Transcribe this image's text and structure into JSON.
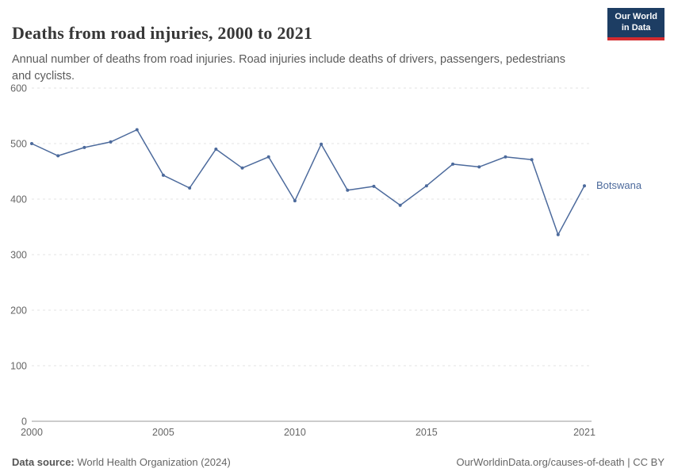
{
  "header": {
    "title": "Deaths from road injuries, 2000 to 2021",
    "subtitle": "Annual number of deaths from road injuries. Road injuries include deaths of drivers, passengers, pedestrians and cyclists.",
    "logo": {
      "line1": "Our World",
      "line2": "in Data"
    }
  },
  "footer": {
    "source_label": "Data source:",
    "source_value": " World Health Organization (2024)",
    "link_text": "OurWorldinData.org/causes-of-death | CC BY"
  },
  "colors": {
    "line": "#4c6a9c",
    "logo_navy": "#1d3d63",
    "logo_red": "#d42b2f",
    "grid": "#e3e3e3",
    "axis": "#9a9a9a",
    "tick_text": "#666666"
  },
  "chart_data": {
    "type": "line",
    "title": "Deaths from road injuries, 2000 to 2021",
    "xlabel": "",
    "ylabel": "",
    "xlim": [
      2000,
      2021
    ],
    "ylim": [
      0,
      600
    ],
    "xticks": [
      2000,
      2005,
      2010,
      2015,
      2021
    ],
    "yticks": [
      0,
      100,
      200,
      300,
      400,
      500,
      600
    ],
    "grid": "horizontal-dashed",
    "legend_position": "entity label right of line end",
    "entity_label": "Botswana",
    "series": [
      {
        "name": "Botswana",
        "color": "#4c6a9c",
        "x": [
          2000,
          2001,
          2002,
          2003,
          2004,
          2005,
          2006,
          2007,
          2008,
          2009,
          2010,
          2011,
          2012,
          2013,
          2014,
          2015,
          2016,
          2017,
          2018,
          2019,
          2020,
          2021
        ],
        "values": [
          500,
          478,
          493,
          503,
          525,
          443,
          420,
          490,
          456,
          476,
          397,
          499,
          416,
          423,
          389,
          424,
          463,
          458,
          476,
          471,
          336,
          424
        ]
      }
    ]
  }
}
